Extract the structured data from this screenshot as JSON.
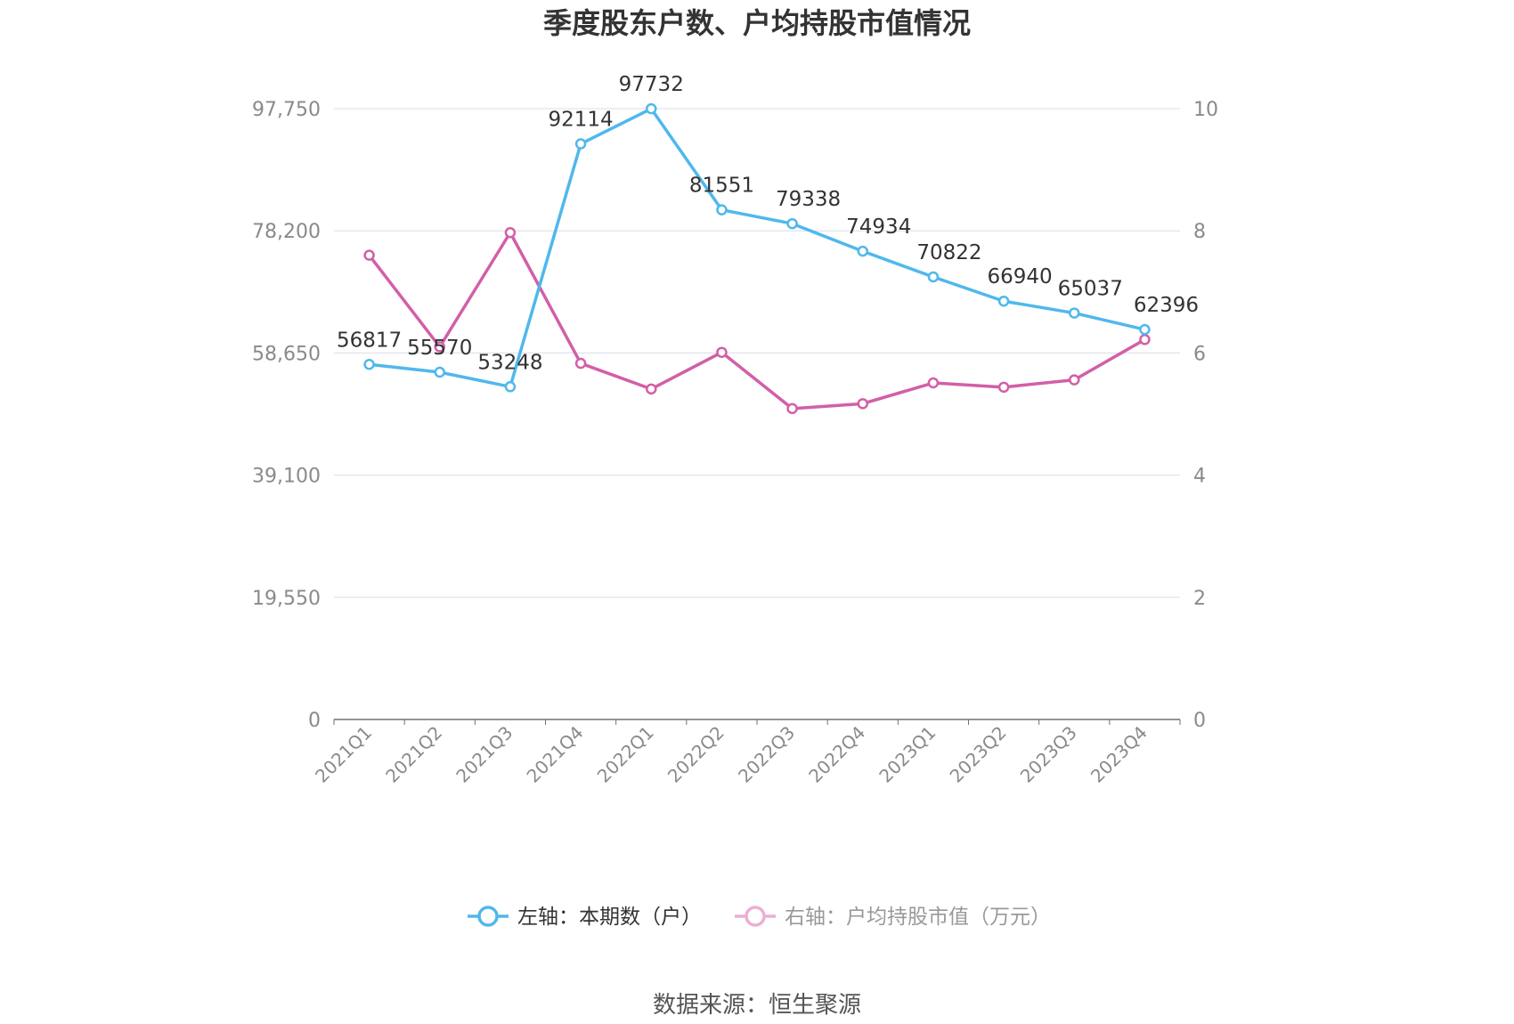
{
  "title": "季度股东户数、户均持股市值情况",
  "source": "数据来源：恒生聚源",
  "chart_data": {
    "type": "line",
    "categories": [
      "2021Q1",
      "2021Q2",
      "2021Q3",
      "2021Q4",
      "2022Q1",
      "2022Q2",
      "2022Q3",
      "2022Q4",
      "2023Q1",
      "2023Q2",
      "2023Q3",
      "2023Q4"
    ],
    "y_left": {
      "ylim": [
        0,
        97750
      ],
      "ticks": [
        0,
        19550,
        39100,
        58650,
        78200,
        97750
      ],
      "tick_labels": [
        "0",
        "19,550",
        "39,100",
        "58,650",
        "78,200",
        "97,750"
      ]
    },
    "y_right": {
      "ylim": [
        0,
        10
      ],
      "ticks": [
        0,
        2,
        4,
        6,
        8,
        10
      ],
      "tick_labels": [
        "0",
        "2",
        "4",
        "6",
        "8",
        "10"
      ]
    },
    "series": [
      {
        "name": "左轴：本期数（户）",
        "axis": "left",
        "color": "#4fb8ec",
        "values": [
          56817,
          55570,
          53248,
          92114,
          97732,
          81551,
          79338,
          74934,
          70822,
          66940,
          65037,
          62396
        ],
        "labels": [
          "56817",
          "55570",
          "53248",
          "92114",
          "97732",
          "81551",
          "79338",
          "74934",
          "70822",
          "66940",
          "65037",
          "62396"
        ]
      },
      {
        "name": "右轴：户均持股市值（万元）",
        "axis": "right",
        "color": "#d25fa8",
        "legend_color": "#ecaed4",
        "values": [
          7.6,
          6.1,
          7.97,
          5.83,
          5.41,
          6.01,
          5.09,
          5.17,
          5.51,
          5.44,
          5.56,
          6.22
        ]
      }
    ],
    "legend_position": "bottom",
    "grid": true
  }
}
